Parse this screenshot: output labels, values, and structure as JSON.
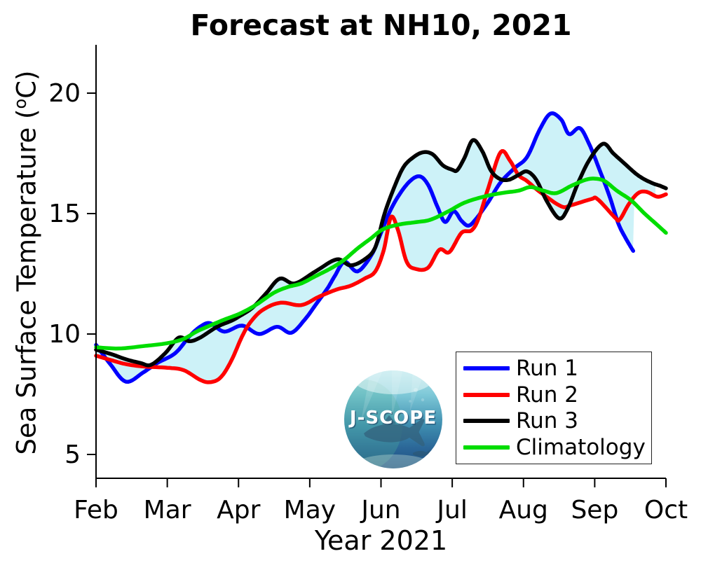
{
  "title": "Forecast at NH10, 2021",
  "logo": {
    "text": "J-SCOPE"
  },
  "axes": {
    "ylabel_pre": "Sea Surface Temperature (",
    "ylabel_sup": "o",
    "ylabel_post": "C)",
    "xlabel": "Year 2021"
  },
  "chart_data": {
    "type": "line",
    "title": "Forecast at NH10, 2021",
    "xlabel": "Year 2021",
    "ylabel": "Sea Surface Temperature (oC)",
    "x_unit": "months since Feb 1, 2021",
    "x_tick_labels": [
      "Feb",
      "Mar",
      "Apr",
      "May",
      "Jun",
      "Jul",
      "Aug",
      "Sep",
      "Oct"
    ],
    "y_ticks": [
      20,
      15,
      10,
      5
    ],
    "ylim": [
      4,
      22
    ],
    "xlim_months": [
      0,
      8
    ],
    "grid": false,
    "legend_position": "lower right",
    "envelope": {
      "description": "shaded band between min and max of Run 1-3",
      "color": "#cdf2f8",
      "x_start": 0,
      "x_end": 7.87
    },
    "series": [
      {
        "name": "Run 1",
        "color": "#0000ff",
        "points": [
          [
            0,
            9.55
          ],
          [
            0.2,
            8.75
          ],
          [
            0.42,
            8.02
          ],
          [
            0.66,
            8.4
          ],
          [
            0.86,
            8.8
          ],
          [
            1.11,
            9.2
          ],
          [
            1.31,
            9.9
          ],
          [
            1.46,
            10.3
          ],
          [
            1.6,
            10.45
          ],
          [
            1.8,
            10.1
          ],
          [
            2.05,
            10.35
          ],
          [
            2.29,
            10.0
          ],
          [
            2.54,
            10.3
          ],
          [
            2.74,
            10.05
          ],
          [
            2.93,
            10.6
          ],
          [
            3.08,
            11.2
          ],
          [
            3.25,
            11.9
          ],
          [
            3.35,
            12.4
          ],
          [
            3.49,
            13.0
          ],
          [
            3.67,
            12.6
          ],
          [
            3.87,
            13.3
          ],
          [
            4.0,
            14.2
          ],
          [
            4.16,
            15.3
          ],
          [
            4.36,
            16.2
          ],
          [
            4.53,
            16.55
          ],
          [
            4.66,
            16.2
          ],
          [
            4.79,
            15.3
          ],
          [
            4.9,
            14.65
          ],
          [
            5.02,
            15.1
          ],
          [
            5.13,
            14.7
          ],
          [
            5.23,
            14.5
          ],
          [
            5.34,
            14.8
          ],
          [
            5.51,
            15.5
          ],
          [
            5.68,
            16.3
          ],
          [
            5.88,
            16.9
          ],
          [
            6.05,
            17.35
          ],
          [
            6.23,
            18.5
          ],
          [
            6.38,
            19.15
          ],
          [
            6.53,
            18.9
          ],
          [
            6.64,
            18.3
          ],
          [
            6.79,
            18.55
          ],
          [
            6.92,
            17.9
          ],
          [
            7.07,
            16.8
          ],
          [
            7.21,
            15.7
          ],
          [
            7.33,
            14.6
          ],
          [
            7.43,
            14.0
          ],
          [
            7.54,
            13.45
          ]
        ]
      },
      {
        "name": "Run 2",
        "color": "#ff0000",
        "points": [
          [
            0,
            9.1
          ],
          [
            0.23,
            8.9
          ],
          [
            0.42,
            8.75
          ],
          [
            0.67,
            8.65
          ],
          [
            1.0,
            8.6
          ],
          [
            1.23,
            8.5
          ],
          [
            1.46,
            8.1
          ],
          [
            1.6,
            8.0
          ],
          [
            1.75,
            8.2
          ],
          [
            1.9,
            8.9
          ],
          [
            2.05,
            9.9
          ],
          [
            2.17,
            10.5
          ],
          [
            2.34,
            11.0
          ],
          [
            2.59,
            11.3
          ],
          [
            2.88,
            11.2
          ],
          [
            3.13,
            11.55
          ],
          [
            3.38,
            11.85
          ],
          [
            3.57,
            12.0
          ],
          [
            3.77,
            12.3
          ],
          [
            3.92,
            12.6
          ],
          [
            4.04,
            13.5
          ],
          [
            4.14,
            14.85
          ],
          [
            4.24,
            14.3
          ],
          [
            4.36,
            13.0
          ],
          [
            4.49,
            12.7
          ],
          [
            4.66,
            12.75
          ],
          [
            4.82,
            13.5
          ],
          [
            4.96,
            13.4
          ],
          [
            5.13,
            14.2
          ],
          [
            5.27,
            14.3
          ],
          [
            5.37,
            14.8
          ],
          [
            5.51,
            16.1
          ],
          [
            5.68,
            17.55
          ],
          [
            5.81,
            17.2
          ],
          [
            5.93,
            16.6
          ],
          [
            6.05,
            16.35
          ],
          [
            6.23,
            15.9
          ],
          [
            6.53,
            15.3
          ],
          [
            6.67,
            15.35
          ],
          [
            6.95,
            15.6
          ],
          [
            7.04,
            15.6
          ],
          [
            7.28,
            14.85
          ],
          [
            7.35,
            14.75
          ],
          [
            7.48,
            15.4
          ],
          [
            7.61,
            15.85
          ],
          [
            7.73,
            15.9
          ],
          [
            7.88,
            15.7
          ],
          [
            8.0,
            15.8
          ]
        ]
      },
      {
        "name": "Run 3",
        "color": "#000000",
        "points": [
          [
            0,
            9.35
          ],
          [
            0.23,
            9.15
          ],
          [
            0.42,
            8.95
          ],
          [
            0.62,
            8.8
          ],
          [
            0.77,
            8.72
          ],
          [
            0.97,
            9.2
          ],
          [
            1.16,
            9.85
          ],
          [
            1.31,
            9.7
          ],
          [
            1.46,
            9.85
          ],
          [
            1.7,
            10.3
          ],
          [
            1.9,
            10.55
          ],
          [
            2.02,
            10.75
          ],
          [
            2.2,
            11.1
          ],
          [
            2.39,
            11.7
          ],
          [
            2.58,
            12.3
          ],
          [
            2.79,
            12.1
          ],
          [
            3.08,
            12.6
          ],
          [
            3.38,
            13.1
          ],
          [
            3.57,
            12.85
          ],
          [
            3.77,
            13.1
          ],
          [
            3.92,
            13.6
          ],
          [
            4.04,
            14.9
          ],
          [
            4.16,
            15.9
          ],
          [
            4.31,
            16.9
          ],
          [
            4.46,
            17.35
          ],
          [
            4.6,
            17.55
          ],
          [
            4.73,
            17.45
          ],
          [
            4.87,
            17.0
          ],
          [
            5.0,
            16.82
          ],
          [
            5.07,
            16.8
          ],
          [
            5.17,
            17.3
          ],
          [
            5.29,
            18.05
          ],
          [
            5.42,
            17.6
          ],
          [
            5.54,
            16.8
          ],
          [
            5.66,
            16.45
          ],
          [
            5.79,
            16.4
          ],
          [
            5.93,
            16.6
          ],
          [
            6.05,
            16.75
          ],
          [
            6.18,
            16.4
          ],
          [
            6.33,
            15.5
          ],
          [
            6.5,
            14.8
          ],
          [
            6.62,
            15.2
          ],
          [
            6.77,
            16.3
          ],
          [
            6.94,
            17.3
          ],
          [
            7.12,
            17.9
          ],
          [
            7.26,
            17.5
          ],
          [
            7.41,
            17.1
          ],
          [
            7.56,
            16.7
          ],
          [
            7.68,
            16.45
          ],
          [
            7.82,
            16.25
          ],
          [
            7.92,
            16.15
          ],
          [
            8.0,
            16.05
          ]
        ]
      },
      {
        "name": "Climatology",
        "color": "#00dd00",
        "points": [
          [
            0,
            9.45
          ],
          [
            0.32,
            9.4
          ],
          [
            0.67,
            9.5
          ],
          [
            1.0,
            9.62
          ],
          [
            1.23,
            9.8
          ],
          [
            1.41,
            10.1
          ],
          [
            1.6,
            10.35
          ],
          [
            1.8,
            10.6
          ],
          [
            2.02,
            10.85
          ],
          [
            2.24,
            11.2
          ],
          [
            2.49,
            11.7
          ],
          [
            2.69,
            11.95
          ],
          [
            2.88,
            12.1
          ],
          [
            3.08,
            12.4
          ],
          [
            3.28,
            12.7
          ],
          [
            3.47,
            13.05
          ],
          [
            3.67,
            13.55
          ],
          [
            3.85,
            13.95
          ],
          [
            4.03,
            14.35
          ],
          [
            4.26,
            14.55
          ],
          [
            4.51,
            14.65
          ],
          [
            4.7,
            14.75
          ],
          [
            4.95,
            15.1
          ],
          [
            5.17,
            15.45
          ],
          [
            5.44,
            15.7
          ],
          [
            5.69,
            15.85
          ],
          [
            5.93,
            15.95
          ],
          [
            6.1,
            16.1
          ],
          [
            6.28,
            15.95
          ],
          [
            6.46,
            15.85
          ],
          [
            6.67,
            16.15
          ],
          [
            6.87,
            16.4
          ],
          [
            7.0,
            16.45
          ],
          [
            7.14,
            16.35
          ],
          [
            7.31,
            15.95
          ],
          [
            7.51,
            15.55
          ],
          [
            7.7,
            15.0
          ],
          [
            7.87,
            14.55
          ],
          [
            8.0,
            14.2
          ]
        ]
      }
    ]
  }
}
